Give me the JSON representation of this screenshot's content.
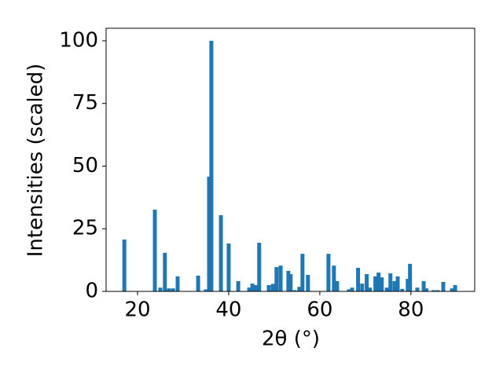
{
  "chart_data": {
    "type": "bar",
    "x_label": "2θ (°)",
    "y_label": "Intensities (scaled)",
    "color": "#1f77b4",
    "x": [
      17.1,
      23.8,
      25.0,
      26.0,
      26.9,
      27.8,
      28.8,
      33.3,
      35.0,
      35.7,
      36.2,
      38.3,
      40.0,
      42.1,
      44.5,
      45.2,
      45.9,
      46.7,
      48.8,
      49.7,
      50.5,
      51.4,
      53.1,
      53.6,
      54.5,
      55.5,
      56.2,
      57.4,
      61.9,
      63.1,
      63.8,
      66.4,
      67.1,
      68.4,
      69.3,
      70.3,
      71.0,
      72.2,
      72.9,
      73.6,
      74.7,
      75.5,
      76.4,
      77.1,
      78.1,
      79.3,
      79.8,
      81.4,
      82.8,
      83.4,
      85.0,
      85.9,
      87.1,
      89.0,
      89.7
    ],
    "values": [
      20.7,
      32.6,
      1.5,
      15.4,
      1.2,
      1.2,
      6.0,
      6.3,
      0.8,
      45.8,
      100,
      30.4,
      19.1,
      4.1,
      1.5,
      3.1,
      2.5,
      19.4,
      2.5,
      3.0,
      9.7,
      10.3,
      8.2,
      6.9,
      0.5,
      1.8,
      15.0,
      6.6,
      15.0,
      10.3,
      4.1,
      0.8,
      1.5,
      9.4,
      3.1,
      6.9,
      1.5,
      6.0,
      7.5,
      5.6,
      1.5,
      7.2,
      4.1,
      6.0,
      1.0,
      5.0,
      11.0,
      1.5,
      4.1,
      1.2,
      0.5,
      0.5,
      3.8,
      1.2,
      2.5
    ],
    "xlim": [
      13.1,
      94.0
    ],
    "ylim": [
      0,
      105
    ],
    "xticks": [
      20,
      40,
      60,
      80
    ],
    "yticks": [
      0,
      25,
      50,
      75,
      100
    ]
  }
}
